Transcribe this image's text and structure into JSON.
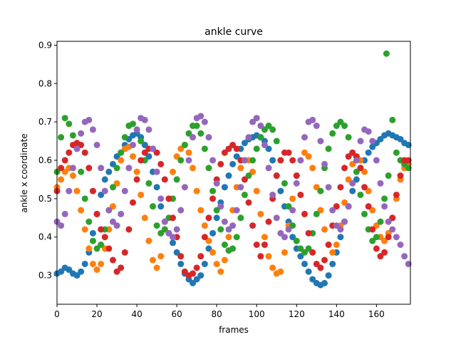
{
  "chart_data": {
    "type": "scatter",
    "title": "ankle curve",
    "xlabel": "frames",
    "ylabel": "ankle x coordinate",
    "xlim": [
      0,
      177
    ],
    "ylim": [
      0.225,
      0.91
    ],
    "x_ticks": [
      0,
      20,
      40,
      60,
      80,
      100,
      120,
      140,
      160
    ],
    "y_ticks": [
      0.3,
      0.4,
      0.5,
      0.6,
      0.7,
      0.8,
      0.9
    ],
    "grid": false,
    "series": [
      {
        "color": "#1f77b4",
        "x": [
          0,
          2,
          4,
          6,
          8,
          10,
          12,
          14,
          16,
          18,
          20,
          22,
          24,
          26,
          28,
          30,
          32,
          34,
          36,
          38,
          40,
          42,
          44,
          46,
          48,
          50,
          52,
          54,
          56,
          58,
          60,
          62,
          64,
          66,
          68,
          70,
          72,
          74,
          76,
          78,
          80,
          82,
          84,
          86,
          88,
          90,
          92,
          94,
          96,
          98,
          100,
          102,
          104,
          106,
          108,
          110,
          112,
          114,
          116,
          118,
          120,
          122,
          124,
          126,
          128,
          130,
          132,
          134,
          136,
          138,
          140,
          142,
          144,
          146,
          148,
          150,
          152,
          154,
          156,
          158,
          160,
          162,
          164,
          166,
          168,
          170,
          172,
          174,
          176
        ],
        "y": [
          0.305,
          0.31,
          0.32,
          0.315,
          0.305,
          0.3,
          0.31,
          0.33,
          0.36,
          0.41,
          0.46,
          0.51,
          0.55,
          0.57,
          0.59,
          0.61,
          0.62,
          0.64,
          0.655,
          0.665,
          0.67,
          0.66,
          0.64,
          0.61,
          0.57,
          0.53,
          0.48,
          0.44,
          0.41,
          0.385,
          0.36,
          0.33,
          0.305,
          0.29,
          0.28,
          0.29,
          0.3,
          0.33,
          0.37,
          0.41,
          0.45,
          0.49,
          0.53,
          0.56,
          0.59,
          0.61,
          0.63,
          0.645,
          0.655,
          0.66,
          0.665,
          0.66,
          0.65,
          0.63,
          0.6,
          0.56,
          0.52,
          0.48,
          0.44,
          0.4,
          0.37,
          0.35,
          0.33,
          0.31,
          0.29,
          0.28,
          0.275,
          0.28,
          0.3,
          0.33,
          0.36,
          0.4,
          0.44,
          0.48,
          0.52,
          0.55,
          0.58,
          0.6,
          0.62,
          0.635,
          0.645,
          0.655,
          0.665,
          0.67,
          0.665,
          0.66,
          0.655,
          0.645,
          0.64
        ]
      },
      {
        "color": "#ff7f0e",
        "x": [
          0,
          2,
          4,
          6,
          8,
          10,
          12,
          14,
          16,
          18,
          20,
          22,
          24,
          26,
          28,
          30,
          32,
          34,
          36,
          38,
          40,
          42,
          44,
          46,
          48,
          50,
          52,
          54,
          56,
          58,
          60,
          62,
          64,
          66,
          68,
          70,
          72,
          74,
          76,
          78,
          80,
          82,
          84,
          86,
          88,
          90,
          92,
          94,
          96,
          98,
          100,
          102,
          104,
          106,
          108,
          110,
          112,
          114,
          116,
          118,
          120,
          122,
          124,
          126,
          128,
          130,
          132,
          134,
          136,
          138,
          140,
          142,
          144,
          146,
          148,
          150,
          152,
          154,
          156,
          158,
          160,
          162,
          164,
          166,
          168,
          170,
          172,
          174,
          176
        ],
        "y": [
          0.53,
          0.55,
          0.57,
          0.58,
          0.56,
          0.52,
          0.47,
          0.42,
          0.37,
          0.33,
          0.315,
          0.33,
          0.37,
          0.42,
          0.48,
          0.54,
          0.6,
          0.63,
          0.635,
          0.61,
          0.57,
          0.51,
          0.45,
          0.39,
          0.34,
          0.32,
          0.35,
          0.42,
          0.5,
          0.57,
          0.61,
          0.63,
          0.64,
          0.62,
          0.58,
          0.52,
          0.47,
          0.43,
          0.39,
          0.36,
          0.33,
          0.31,
          0.34,
          0.4,
          0.47,
          0.53,
          0.58,
          0.6,
          0.6,
          0.57,
          0.52,
          0.46,
          0.4,
          0.35,
          0.32,
          0.305,
          0.31,
          0.36,
          0.43,
          0.5,
          0.56,
          0.6,
          0.62,
          0.61,
          0.58,
          0.53,
          0.47,
          0.42,
          0.38,
          0.36,
          0.38,
          0.43,
          0.49,
          0.55,
          0.59,
          0.61,
          0.6,
          0.57,
          0.52,
          0.47,
          0.43,
          0.4,
          0.39,
          0.41,
          0.45,
          0.5,
          0.55,
          0.58,
          0.59
        ]
      },
      {
        "color": "#2ca02c",
        "x": [
          0,
          2,
          4,
          6,
          8,
          10,
          12,
          14,
          16,
          18,
          20,
          22,
          24,
          26,
          28,
          30,
          32,
          34,
          36,
          38,
          40,
          42,
          44,
          46,
          48,
          50,
          52,
          54,
          56,
          58,
          60,
          62,
          64,
          66,
          68,
          70,
          72,
          74,
          76,
          78,
          80,
          82,
          84,
          86,
          88,
          90,
          92,
          94,
          96,
          98,
          100,
          102,
          104,
          106,
          108,
          110,
          112,
          114,
          116,
          118,
          120,
          122,
          124,
          126,
          128,
          130,
          132,
          134,
          136,
          138,
          140,
          142,
          144,
          146,
          148,
          150,
          152,
          154,
          156,
          158,
          160,
          162,
          164,
          165,
          166,
          168,
          170,
          172,
          174,
          176
        ],
        "y": [
          0.57,
          0.66,
          0.71,
          0.695,
          0.665,
          0.63,
          0.57,
          0.5,
          0.44,
          0.39,
          0.37,
          0.38,
          0.42,
          0.47,
          0.53,
          0.58,
          0.62,
          0.66,
          0.69,
          0.695,
          0.68,
          0.65,
          0.6,
          0.54,
          0.48,
          0.43,
          0.41,
          0.42,
          0.45,
          0.5,
          0.55,
          0.6,
          0.64,
          0.67,
          0.69,
          0.69,
          0.67,
          0.63,
          0.58,
          0.52,
          0.47,
          0.42,
          0.38,
          0.365,
          0.37,
          0.4,
          0.45,
          0.51,
          0.56,
          0.6,
          0.63,
          0.66,
          0.68,
          0.69,
          0.68,
          0.65,
          0.6,
          0.54,
          0.48,
          0.43,
          0.39,
          0.37,
          0.36,
          0.37,
          0.41,
          0.46,
          0.52,
          0.58,
          0.63,
          0.67,
          0.69,
          0.7,
          0.69,
          0.66,
          0.62,
          0.57,
          0.51,
          0.46,
          0.42,
          0.39,
          0.4,
          0.44,
          0.5,
          0.878,
          0.56,
          0.705,
          0.62,
          0.6,
          0.59,
          0.58
        ]
      },
      {
        "color": "#d62728",
        "x": [
          0,
          2,
          4,
          6,
          8,
          10,
          12,
          14,
          16,
          18,
          20,
          22,
          24,
          26,
          28,
          30,
          32,
          34,
          36,
          38,
          40,
          42,
          44,
          46,
          48,
          50,
          52,
          54,
          56,
          58,
          60,
          62,
          64,
          66,
          68,
          70,
          72,
          74,
          76,
          78,
          80,
          82,
          84,
          86,
          88,
          90,
          92,
          94,
          96,
          98,
          100,
          102,
          104,
          106,
          108,
          110,
          112,
          114,
          116,
          118,
          120,
          122,
          124,
          126,
          128,
          130,
          132,
          134,
          136,
          138,
          140,
          142,
          144,
          146,
          148,
          150,
          152,
          154,
          156,
          158,
          160,
          162,
          164,
          166,
          168,
          170,
          172,
          174,
          176
        ],
        "y": [
          0.52,
          0.58,
          0.6,
          0.62,
          0.64,
          0.645,
          0.64,
          0.62,
          0.58,
          0.52,
          0.46,
          0.42,
          0.4,
          0.37,
          0.34,
          0.31,
          0.32,
          0.36,
          0.42,
          0.49,
          0.55,
          0.6,
          0.62,
          0.63,
          0.63,
          0.62,
          0.59,
          0.55,
          0.5,
          0.45,
          0.4,
          0.35,
          0.31,
          0.3,
          0.305,
          0.32,
          0.35,
          0.4,
          0.45,
          0.5,
          0.55,
          0.59,
          0.62,
          0.63,
          0.64,
          0.63,
          0.6,
          0.55,
          0.49,
          0.43,
          0.38,
          0.35,
          0.38,
          0.44,
          0.5,
          0.56,
          0.6,
          0.62,
          0.62,
          0.6,
          0.56,
          0.51,
          0.46,
          0.41,
          0.36,
          0.33,
          0.32,
          0.34,
          0.38,
          0.43,
          0.48,
          0.53,
          0.58,
          0.61,
          0.62,
          0.61,
          0.58,
          0.53,
          0.48,
          0.42,
          0.37,
          0.35,
          0.36,
          0.4,
          0.45,
          0.51,
          0.56,
          0.6,
          0.6
        ]
      },
      {
        "color": "#9467bd",
        "x": [
          0,
          2,
          4,
          6,
          8,
          10,
          12,
          14,
          16,
          18,
          20,
          22,
          24,
          26,
          28,
          30,
          32,
          34,
          36,
          38,
          40,
          42,
          44,
          46,
          48,
          50,
          52,
          54,
          56,
          58,
          60,
          62,
          64,
          66,
          68,
          70,
          72,
          74,
          76,
          78,
          80,
          82,
          84,
          86,
          88,
          90,
          92,
          94,
          96,
          98,
          100,
          102,
          104,
          106,
          108,
          110,
          112,
          114,
          116,
          118,
          120,
          122,
          124,
          126,
          128,
          130,
          132,
          134,
          136,
          138,
          140,
          142,
          144,
          146,
          148,
          150,
          152,
          154,
          156,
          158,
          160,
          162,
          164,
          166,
          168,
          170,
          172,
          174,
          176
        ],
        "y": [
          0.44,
          0.43,
          0.46,
          0.52,
          0.58,
          0.63,
          0.67,
          0.7,
          0.705,
          0.68,
          0.64,
          0.58,
          0.52,
          0.47,
          0.44,
          0.43,
          0.46,
          0.52,
          0.58,
          0.64,
          0.68,
          0.71,
          0.705,
          0.68,
          0.63,
          0.57,
          0.5,
          0.44,
          0.41,
          0.4,
          0.42,
          0.47,
          0.53,
          0.6,
          0.66,
          0.71,
          0.715,
          0.7,
          0.66,
          0.6,
          0.54,
          0.48,
          0.44,
          0.42,
          0.43,
          0.47,
          0.53,
          0.6,
          0.66,
          0.7,
          0.71,
          0.69,
          0.64,
          0.58,
          0.51,
          0.45,
          0.41,
          0.4,
          0.42,
          0.47,
          0.54,
          0.6,
          0.66,
          0.7,
          0.705,
          0.69,
          0.65,
          0.59,
          0.53,
          0.47,
          0.43,
          0.42,
          0.44,
          0.48,
          0.54,
          0.6,
          0.65,
          0.68,
          0.675,
          0.65,
          0.6,
          0.54,
          0.48,
          0.44,
          0.42,
          0.4,
          0.38,
          0.35,
          0.33
        ]
      }
    ]
  }
}
